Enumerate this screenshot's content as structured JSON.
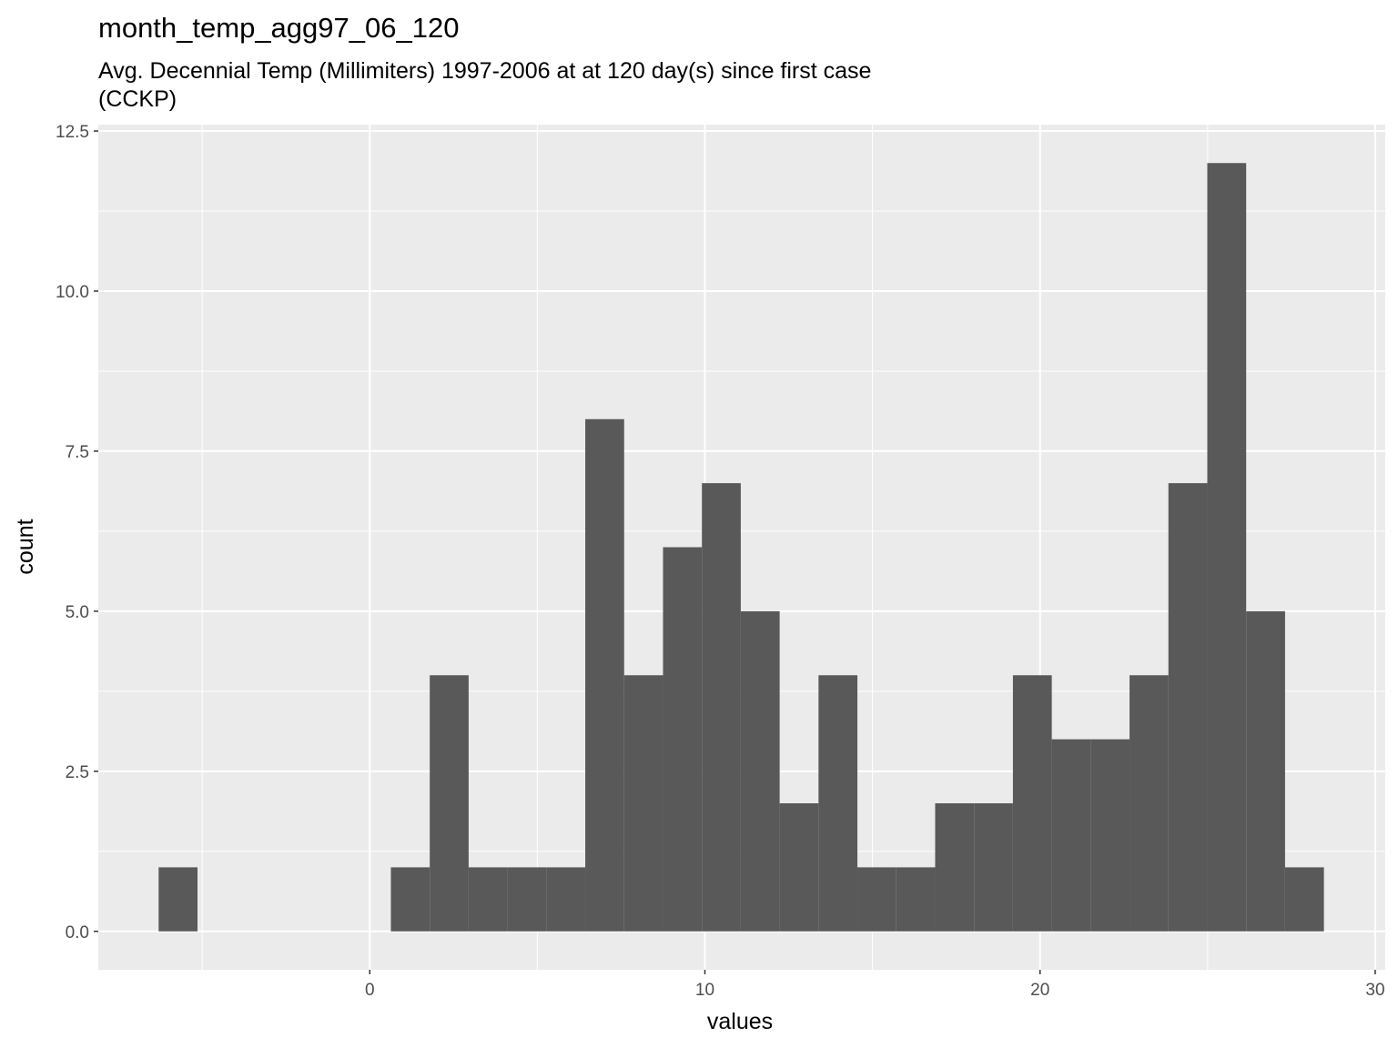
{
  "chart_data": {
    "type": "bar",
    "title": "month_temp_agg97_06_120",
    "subtitle_lines": [
      "Avg. Decennial Temp (Millimiters) 1997-2006 at at 120 day(s) since first case",
      "(CCKP)"
    ],
    "xlabel": "values",
    "ylabel": "count",
    "xlim": [
      -8.1,
      30.3
    ],
    "ylim": [
      -0.6,
      12.6
    ],
    "x_major_ticks": [
      0,
      10,
      20,
      30
    ],
    "x_minor_ticks": [
      -5,
      5,
      15,
      25
    ],
    "x_tick_labels": [
      "0",
      "10",
      "20",
      "30"
    ],
    "y_major_ticks": [
      0,
      2.5,
      5,
      7.5,
      10,
      12.5
    ],
    "y_minor_ticks": [
      1.25,
      3.75,
      6.25,
      8.75,
      11.25
    ],
    "y_tick_labels": [
      "0.0",
      "2.5",
      "5.0",
      "7.5",
      "10.0",
      "12.5"
    ],
    "grid": true,
    "bar_color": "#595959",
    "panel_color": "#ebebeb",
    "bins": [
      {
        "x0": -6.3,
        "x1": -5.14,
        "count": 1
      },
      {
        "x0": 0.63,
        "x1": 1.79,
        "count": 1
      },
      {
        "x0": 1.79,
        "x1": 2.95,
        "count": 4
      },
      {
        "x0": 2.95,
        "x1": 4.11,
        "count": 1
      },
      {
        "x0": 4.11,
        "x1": 5.27,
        "count": 1
      },
      {
        "x0": 5.27,
        "x1": 6.43,
        "count": 1
      },
      {
        "x0": 6.43,
        "x1": 7.59,
        "count": 8
      },
      {
        "x0": 7.59,
        "x1": 8.75,
        "count": 4
      },
      {
        "x0": 8.75,
        "x1": 9.91,
        "count": 6
      },
      {
        "x0": 9.91,
        "x1": 11.07,
        "count": 7
      },
      {
        "x0": 11.07,
        "x1": 12.23,
        "count": 5
      },
      {
        "x0": 12.23,
        "x1": 13.39,
        "count": 2
      },
      {
        "x0": 13.39,
        "x1": 14.55,
        "count": 4
      },
      {
        "x0": 14.55,
        "x1": 15.71,
        "count": 1
      },
      {
        "x0": 15.71,
        "x1": 16.87,
        "count": 1
      },
      {
        "x0": 16.87,
        "x1": 18.03,
        "count": 2
      },
      {
        "x0": 18.03,
        "x1": 19.19,
        "count": 2
      },
      {
        "x0": 19.19,
        "x1": 20.35,
        "count": 4
      },
      {
        "x0": 20.35,
        "x1": 21.51,
        "count": 3
      },
      {
        "x0": 21.51,
        "x1": 22.67,
        "count": 3
      },
      {
        "x0": 22.67,
        "x1": 23.83,
        "count": 4
      },
      {
        "x0": 23.83,
        "x1": 24.99,
        "count": 7
      },
      {
        "x0": 24.99,
        "x1": 26.15,
        "count": 12
      },
      {
        "x0": 26.15,
        "x1": 27.31,
        "count": 5
      },
      {
        "x0": 27.31,
        "x1": 28.47,
        "count": 1
      }
    ]
  }
}
